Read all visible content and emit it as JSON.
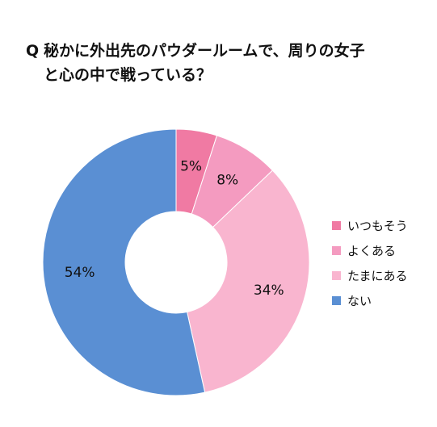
{
  "title": {
    "prefix": "Q",
    "line1": "秘かに外出先のパウダールームで、周りの女子",
    "line2": "と心の中で戦っている？"
  },
  "chart_data": {
    "type": "pie",
    "style": "donut",
    "categories": [
      "いつもそう",
      "よくある",
      "たまにある",
      "ない"
    ],
    "values": [
      5,
      8,
      34,
      54
    ],
    "value_labels": [
      "5%",
      "8%",
      "34%",
      "54%"
    ],
    "colors": [
      "#f07aa3",
      "#f49bc0",
      "#f9b5cf",
      "#5a8fd3"
    ],
    "legend_placement": "right"
  }
}
